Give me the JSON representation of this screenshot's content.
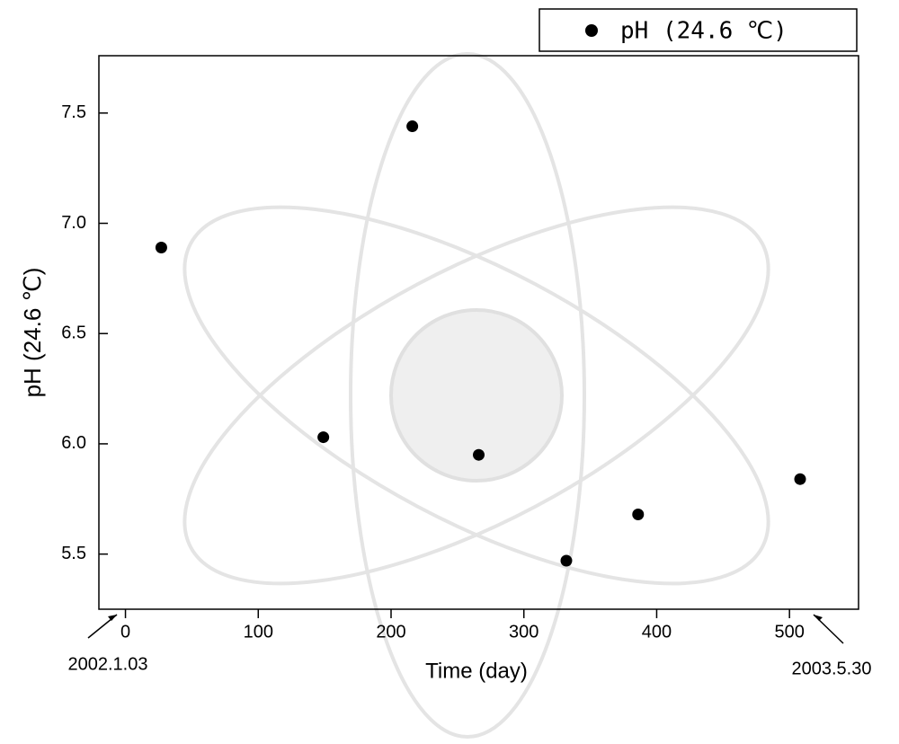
{
  "chart_data": {
    "type": "scatter",
    "x_label": "Time (day)",
    "y_label": "pH (24.6 ℃)",
    "annotations": [
      "2002.1.03",
      "2003.5.30"
    ],
    "series": [
      {
        "name": "pH (24.6 ℃)",
        "color": "#000000",
        "x": [
          27,
          216,
          149,
          266,
          332,
          386,
          508
        ],
        "values": [
          6.89,
          7.44,
          6.03,
          5.95,
          5.47,
          5.68,
          5.84
        ]
      }
    ],
    "xlim": [
      -20,
      552
    ],
    "xticks": [
      0,
      100,
      200,
      300,
      400,
      500
    ],
    "ylim": [
      5.25,
      7.76
    ],
    "yticks": [
      {
        "value": 5.5,
        "label": "5.5"
      },
      {
        "value": 6.0,
        "label": "6.0"
      },
      {
        "value": 6.5,
        "label": "6.5"
      },
      {
        "value": 7.0,
        "label": "7.0"
      },
      {
        "value": 7.5,
        "label": "7.5"
      }
    ],
    "legend": "top-right",
    "grid": false
  }
}
